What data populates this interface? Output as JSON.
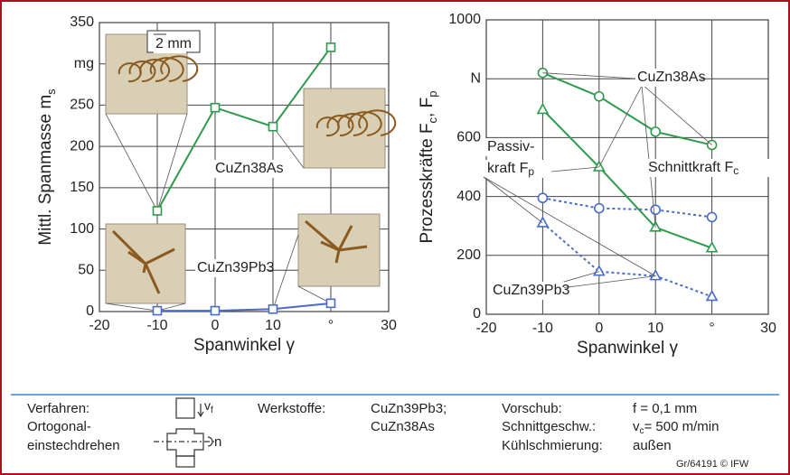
{
  "chart_data": [
    {
      "type": "line",
      "ylabel": "Mittl. Spanmasse m",
      "ylabel_sub": "s",
      "xlabel": "Spanwinkel γ",
      "x": [
        -10,
        0,
        10,
        20
      ],
      "xlim": [
        -20,
        30
      ],
      "xticks": [
        -20,
        -10,
        0,
        10,
        {
          "value": 20,
          "label": "°"
        },
        30
      ],
      "ylim": [
        0,
        350
      ],
      "yticks": [
        0,
        50,
        100,
        150,
        200,
        250,
        {
          "value": 300,
          "label": "mg"
        },
        350
      ],
      "grid": true,
      "series": [
        {
          "color": "#2f9a4c",
          "marker": "square",
          "dashed": false,
          "values": [
            122,
            247,
            224,
            320
          ]
        },
        {
          "color": "#4a6cc8",
          "marker": "square",
          "dashed": false,
          "values": [
            1,
            1,
            3,
            10
          ]
        }
      ],
      "annotations": [
        {
          "text": "2 mm"
        },
        {
          "text": "CuZn38As"
        },
        {
          "text": "CuZn39Pb3"
        }
      ]
    },
    {
      "type": "line",
      "ylabel": "Prozesskräfte F",
      "ylabel_sub": "c",
      "ylabel_2": ", F",
      "ylabel_2_sub": "p",
      "xlabel": "Spanwinkel γ",
      "x": [
        -10,
        0,
        10,
        20
      ],
      "xlim": [
        -20,
        30
      ],
      "xticks": [
        -20,
        -10,
        0,
        10,
        {
          "value": 20,
          "label": "°"
        },
        30
      ],
      "ylim": [
        0,
        1000
      ],
      "yticks": [
        0,
        200,
        400,
        600,
        {
          "value": 800,
          "label": "N"
        },
        1000
      ],
      "grid": true,
      "series": [
        {
          "color": "#2f9a4c",
          "marker": "circle",
          "dashed": false,
          "values": [
            820,
            740,
            620,
            575
          ]
        },
        {
          "color": "#2f9a4c",
          "marker": "triangle",
          "dashed": false,
          "values": [
            695,
            500,
            295,
            225
          ]
        },
        {
          "color": "#4a6cc8",
          "marker": "circle",
          "dashed": true,
          "values": [
            395,
            360,
            355,
            330
          ]
        },
        {
          "color": "#4a6cc8",
          "marker": "triangle",
          "dashed": true,
          "values": [
            310,
            145,
            130,
            60
          ]
        }
      ],
      "annotations": [
        {
          "text": "CuZn38As"
        },
        {
          "text": "Passiv-"
        },
        {
          "text": "kraft F",
          "sub": "p"
        },
        {
          "text": "Schnittkraft F",
          "sub": "c"
        },
        {
          "text": "CuZn39Pb3"
        }
      ]
    }
  ],
  "footer": {
    "process_label": "Verfahren:",
    "process_1": "Ortogonal-",
    "process_2": "einstechdrehen",
    "feed_symbol": "v",
    "feed_symbol_sub": "f",
    "speed_symbol": "n",
    "materials_label": "Werkstoffe:",
    "material_1": "CuZn39Pb3;",
    "material_2": "CuZn38As",
    "param_1": "Vorschub:",
    "param_2": "Schnittgeschw.:",
    "param_3": "Kühlschmierung:",
    "value_1": "f  = 0,1 mm",
    "value_2_sym": "v",
    "value_2_sub": "c",
    "value_2": "= 500 m/min",
    "value_3": "außen",
    "credit": "Gr/64191 © IFW"
  }
}
